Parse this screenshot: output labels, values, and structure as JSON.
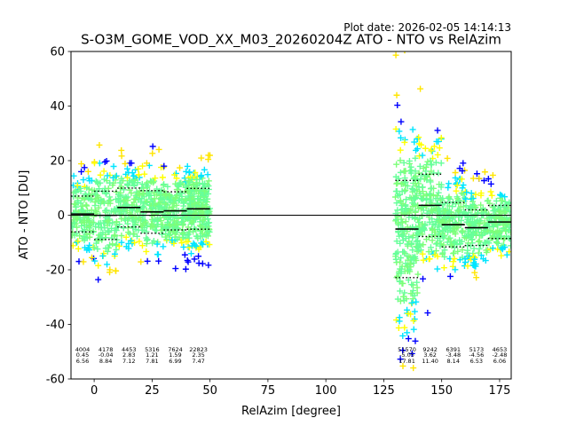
{
  "plot_date": "Plot date: 2026-02-05 14:14:13",
  "chart_data": {
    "type": "scatter",
    "title": "S-O3M_GOME_VOD_XX_M03_20260204Z ATO - NTO vs RelAzim",
    "xlabel": "RelAzim [degree]",
    "ylabel": "ATO - NTO [DU]",
    "xlim": [
      -10,
      180
    ],
    "ylim": [
      -60,
      60
    ],
    "xticks": [
      0,
      25,
      50,
      75,
      100,
      125,
      150,
      175
    ],
    "yticks": [
      -60,
      -40,
      -20,
      0,
      20,
      40,
      60
    ],
    "grid": false,
    "reference_line_y": 0,
    "point_colors": [
      "#0000ff",
      "#00e5ff",
      "#66ff99",
      "#7cff79",
      "#ffe500",
      "#ffff00"
    ],
    "bins": [
      {
        "x_start": -10,
        "x_end": 0,
        "count": 4004,
        "mean": 0.45,
        "std": 6.56
      },
      {
        "x_start": 0,
        "x_end": 10,
        "count": 4178,
        "mean": -0.04,
        "std": 8.84
      },
      {
        "x_start": 10,
        "x_end": 20,
        "count": 4453,
        "mean": 2.83,
        "std": 7.12
      },
      {
        "x_start": 20,
        "x_end": 30,
        "count": 5316,
        "mean": 1.21,
        "std": 7.81
      },
      {
        "x_start": 30,
        "x_end": 40,
        "count": 7624,
        "mean": 1.59,
        "std": 6.99
      },
      {
        "x_start": 40,
        "x_end": 50,
        "count": 22823,
        "mean": 2.35,
        "std": 7.47
      },
      {
        "x_start": 130,
        "x_end": 140,
        "count": 51570,
        "mean": -5.05,
        "std": 17.81
      },
      {
        "x_start": 140,
        "x_end": 150,
        "count": 9242,
        "mean": 3.62,
        "std": 11.4
      },
      {
        "x_start": 150,
        "x_end": 160,
        "count": 6391,
        "mean": -3.48,
        "std": 8.14
      },
      {
        "x_start": 160,
        "x_end": 170,
        "count": 5173,
        "mean": -4.56,
        "std": 6.53
      },
      {
        "x_start": 170,
        "x_end": 180,
        "count": 4653,
        "mean": -2.48,
        "std": 6.06
      }
    ],
    "bin_labels": [
      {
        "count": "4004",
        "mean": "0.45",
        "std": "6.56"
      },
      {
        "count": "4178",
        "mean": "-0.04",
        "std": "8.84"
      },
      {
        "count": "4453",
        "mean": "2.83",
        "std": "7.12"
      },
      {
        "count": "5316",
        "mean": "1.21",
        "std": "7.81"
      },
      {
        "count": "7624",
        "mean": "1.59",
        "std": "6.99"
      },
      {
        "count": "22823",
        "mean": "2.35",
        "std": "7.47"
      },
      {
        "count": "51570",
        "mean": "-5.05",
        "std": "17.81"
      },
      {
        "count": "9242",
        "mean": "3.62",
        "std": "11.40"
      },
      {
        "count": "6391",
        "mean": "-3.48",
        "std": "8.14"
      },
      {
        "count": "5173",
        "mean": "-4.56",
        "std": "6.53"
      },
      {
        "count": "4653",
        "mean": "-2.48",
        "std": "6.06"
      }
    ]
  }
}
